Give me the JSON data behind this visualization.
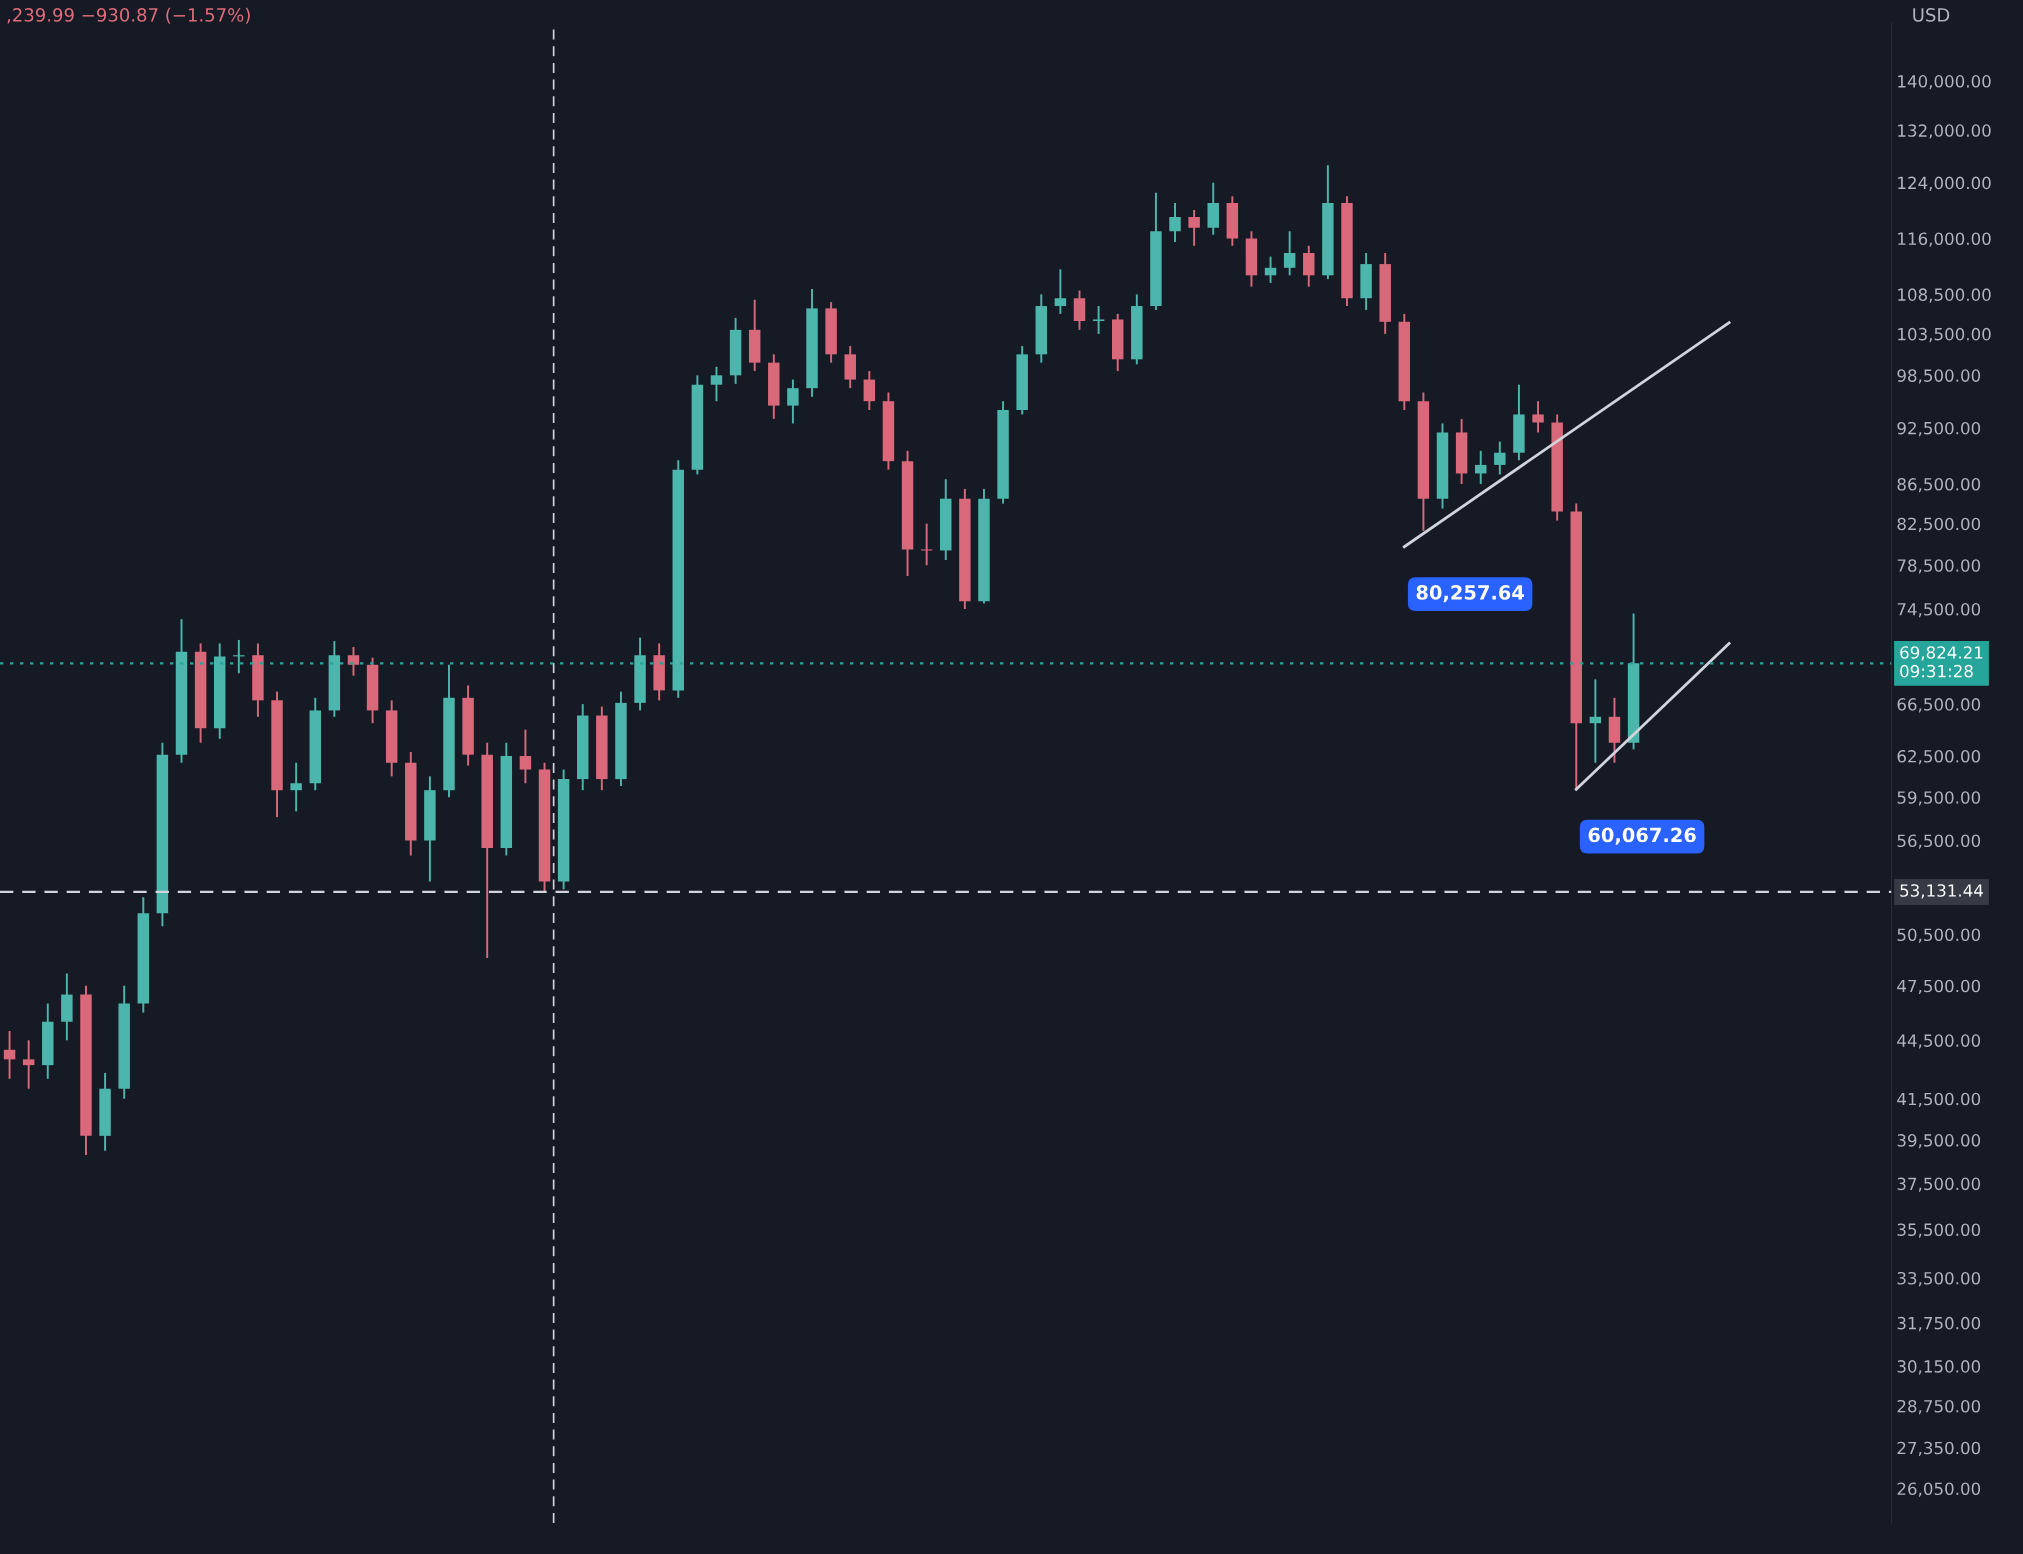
{
  "chart_data": {
    "type": "candlestick",
    "log": "y",
    "grid": false,
    "categories": [
      null,
      null,
      null,
      null,
      null,
      null,
      null,
      null,
      null,
      null,
      null,
      null,
      null,
      null,
      null,
      null,
      null,
      null,
      null,
      null,
      null,
      null,
      null,
      null,
      null,
      null,
      null,
      null,
      null,
      null,
      null,
      null,
      null,
      null,
      null,
      null,
      null,
      null,
      null,
      null,
      null,
      null,
      null,
      null,
      null,
      null,
      null,
      null,
      null,
      null,
      null,
      null,
      null,
      null,
      null,
      null,
      null,
      null,
      null,
      null,
      null,
      null,
      null,
      null,
      null,
      null,
      null,
      null,
      null,
      null,
      null,
      null,
      null,
      null,
      null,
      null,
      null,
      null,
      null,
      null,
      null,
      null,
      null,
      null,
      null,
      null,
      null,
      null,
      null,
      null,
      null,
      null,
      null,
      null,
      null,
      null,
      null,
      null,
      null
    ],
    "ohlc": [
      [
        44000,
        45000,
        42500,
        43500
      ],
      [
        43500,
        44500,
        42000,
        43200
      ],
      [
        43200,
        46500,
        42500,
        45500
      ],
      [
        45500,
        48200,
        44500,
        47000
      ],
      [
        47000,
        47500,
        38800,
        39700
      ],
      [
        39700,
        42800,
        39000,
        42000
      ],
      [
        42000,
        47500,
        41500,
        46500
      ],
      [
        46500,
        52800,
        46000,
        51800
      ],
      [
        51800,
        63500,
        51000,
        62600
      ],
      [
        62600,
        73600,
        62000,
        70800
      ],
      [
        70800,
        71500,
        63500,
        64600
      ],
      [
        64600,
        71500,
        63800,
        70400
      ],
      [
        70400,
        71800,
        69000,
        70500
      ],
      [
        70500,
        71500,
        65500,
        66800
      ],
      [
        66800,
        67500,
        58100,
        60000
      ],
      [
        60000,
        62000,
        58500,
        60500
      ],
      [
        60500,
        67000,
        60000,
        66000
      ],
      [
        66000,
        71700,
        65500,
        70500
      ],
      [
        70500,
        71200,
        68800,
        69700
      ],
      [
        69700,
        70300,
        65000,
        66000
      ],
      [
        66000,
        66800,
        61000,
        62000
      ],
      [
        62000,
        62800,
        55500,
        56500
      ],
      [
        56500,
        61000,
        53800,
        60000
      ],
      [
        60000,
        69700,
        59500,
        67000
      ],
      [
        67000,
        68000,
        61800,
        62600
      ],
      [
        62600,
        63500,
        49100,
        56000
      ],
      [
        56000,
        63500,
        55500,
        62500
      ],
      [
        62500,
        64500,
        60500,
        61500
      ],
      [
        61500,
        62000,
        53100,
        53800
      ],
      [
        53800,
        61500,
        53300,
        60800
      ],
      [
        60800,
        66500,
        60000,
        65600
      ],
      [
        65600,
        66300,
        60000,
        60800
      ],
      [
        60800,
        67500,
        60300,
        66600
      ],
      [
        66600,
        72000,
        66000,
        70500
      ],
      [
        70500,
        71500,
        66800,
        67600
      ],
      [
        67600,
        89000,
        67000,
        88000
      ],
      [
        88000,
        98500,
        87500,
        97400
      ],
      [
        97400,
        99500,
        95500,
        98500
      ],
      [
        98500,
        105500,
        97500,
        104000
      ],
      [
        104000,
        107800,
        99000,
        100000
      ],
      [
        100000,
        101000,
        93500,
        95000
      ],
      [
        95000,
        98000,
        93000,
        97000
      ],
      [
        97000,
        109200,
        96000,
        106700
      ],
      [
        106700,
        107500,
        100000,
        101000
      ],
      [
        101000,
        102000,
        97000,
        98000
      ],
      [
        98000,
        99000,
        94500,
        95500
      ],
      [
        95500,
        96500,
        88000,
        88900
      ],
      [
        88900,
        90000,
        77500,
        80000
      ],
      [
        80000,
        82500,
        78500,
        79900
      ],
      [
        79900,
        87000,
        79000,
        85000
      ],
      [
        85000,
        86000,
        74500,
        75200
      ],
      [
        75200,
        86000,
        75000,
        85000
      ],
      [
        85000,
        95500,
        84500,
        94500
      ],
      [
        94500,
        102000,
        94000,
        101000
      ],
      [
        101000,
        108500,
        100000,
        107000
      ],
      [
        107000,
        111800,
        106000,
        108000
      ],
      [
        108000,
        109000,
        104000,
        105100
      ],
      [
        105100,
        107000,
        103500,
        105300
      ],
      [
        105300,
        106000,
        99000,
        100400
      ],
      [
        100400,
        108500,
        99800,
        107000
      ],
      [
        107000,
        122500,
        106500,
        117000
      ],
      [
        117000,
        121000,
        115500,
        119000
      ],
      [
        119000,
        120000,
        115000,
        117500
      ],
      [
        117500,
        124000,
        116500,
        121000
      ],
      [
        121000,
        122000,
        115000,
        116000
      ],
      [
        116000,
        117000,
        109500,
        111000
      ],
      [
        111000,
        113500,
        110000,
        112000
      ],
      [
        112000,
        117000,
        111000,
        114000
      ],
      [
        114000,
        115000,
        109500,
        111000
      ],
      [
        111000,
        126600,
        110500,
        121000
      ],
      [
        121000,
        122000,
        107000,
        108000
      ],
      [
        108000,
        114000,
        106500,
        112500
      ],
      [
        112500,
        114000,
        103500,
        105000
      ],
      [
        105000,
        106000,
        94500,
        95500
      ],
      [
        95500,
        96500,
        81800,
        85000
      ],
      [
        85000,
        93000,
        84000,
        92000
      ],
      [
        92000,
        93500,
        86500,
        87600
      ],
      [
        87600,
        90000,
        86500,
        88500
      ],
      [
        88500,
        91000,
        87500,
        89800
      ],
      [
        89800,
        97400,
        89000,
        94000
      ],
      [
        94000,
        95500,
        92000,
        93100
      ],
      [
        93100,
        94000,
        82800,
        83700
      ],
      [
        83700,
        84500,
        60000,
        65000
      ],
      [
        65000,
        68500,
        62000,
        65500
      ],
      [
        65500,
        67000,
        62000,
        63500
      ],
      [
        63500,
        74100,
        63000,
        69824
      ],
      null,
      null,
      null,
      null,
      null,
      null,
      null,
      null,
      null,
      null,
      null,
      null,
      null
    ],
    "series": [
      {
        "type": "line",
        "name": "80,257.64",
        "color": "#d1d4dc",
        "values": [
          null,
          null,
          null,
          null,
          null,
          null,
          null,
          null,
          null,
          null,
          null,
          null,
          null,
          null,
          null,
          null,
          null,
          null,
          null,
          null,
          null,
          null,
          null,
          null,
          null,
          null,
          null,
          null,
          null,
          null,
          null,
          null,
          null,
          null,
          null,
          null,
          null,
          null,
          null,
          null,
          null,
          null,
          null,
          null,
          null,
          null,
          null,
          null,
          null,
          null,
          null,
          null,
          null,
          null,
          null,
          null,
          null,
          null,
          null,
          null,
          null,
          null,
          null,
          null,
          null,
          null,
          null,
          null,
          null,
          null,
          null,
          null,
          null,
          80257.64,
          null,
          null,
          null,
          null,
          null,
          null,
          null,
          null,
          null,
          null,
          null,
          null,
          null,
          null,
          null,
          null,
          104900,
          null,
          null,
          null,
          null,
          null,
          null,
          null,
          null
        ]
      },
      {
        "type": "line",
        "name": "60,067.26",
        "color": "#d1d4dc",
        "values": [
          null,
          null,
          null,
          null,
          null,
          null,
          null,
          null,
          null,
          null,
          null,
          null,
          null,
          null,
          null,
          null,
          null,
          null,
          null,
          null,
          null,
          null,
          null,
          null,
          null,
          null,
          null,
          null,
          null,
          null,
          null,
          null,
          null,
          null,
          null,
          null,
          null,
          null,
          null,
          null,
          null,
          null,
          null,
          null,
          null,
          null,
          null,
          null,
          null,
          null,
          null,
          null,
          null,
          null,
          null,
          null,
          null,
          null,
          null,
          null,
          null,
          null,
          null,
          null,
          null,
          null,
          null,
          null,
          null,
          null,
          null,
          null,
          null,
          null,
          null,
          null,
          null,
          null,
          null,
          null,
          null,
          null,
          60067.26,
          null,
          null,
          null,
          null,
          null,
          null,
          null,
          71500,
          null,
          null,
          null,
          null,
          null,
          null,
          null,
          null
        ]
      }
    ],
    "ylim": [
      25000,
      150000
    ],
    "yticks": [
      {
        "value": 140000,
        "label": "140,000.00"
      },
      {
        "value": 132000,
        "label": "132,000.00"
      },
      {
        "value": 124000,
        "label": "124,000.00"
      },
      {
        "value": 116000,
        "label": "116,000.00"
      },
      {
        "value": 108500,
        "label": "108,500.00"
      },
      {
        "value": 103500,
        "label": "103,500.00"
      },
      {
        "value": 98500,
        "label": "98,500.00"
      },
      {
        "value": 92500,
        "label": "92,500.00"
      },
      {
        "value": 86500,
        "label": "86,500.00"
      },
      {
        "value": 82500,
        "label": "82,500.00"
      },
      {
        "value": 78500,
        "label": "78,500.00"
      },
      {
        "value": 74500,
        "label": "74,500.00"
      },
      {
        "value": 66500,
        "label": "66,500.00"
      },
      {
        "value": 62500,
        "label": "62,500.00"
      },
      {
        "value": 59500,
        "label": "59,500.00"
      },
      {
        "value": 56500,
        "label": "56,500.00"
      },
      {
        "value": 50500,
        "label": "50,500.00"
      },
      {
        "value": 47500,
        "label": "47,500.00"
      },
      {
        "value": 44500,
        "label": "44,500.00"
      },
      {
        "value": 41500,
        "label": "41,500.00"
      },
      {
        "value": 39500,
        "label": "39,500.00"
      },
      {
        "value": 37500,
        "label": "37,500.00"
      },
      {
        "value": 35500,
        "label": "35,500.00"
      },
      {
        "value": 33500,
        "label": "33,500.00"
      },
      {
        "value": 31750,
        "label": "31,750.00"
      },
      {
        "value": 30150,
        "label": "30,150.00"
      },
      {
        "value": 28750,
        "label": "28,750.00"
      },
      {
        "value": 27350,
        "label": "27,350.00"
      },
      {
        "value": 26050,
        "label": "26,050.00"
      }
    ],
    "ref_lines": [
      {
        "axis": "y",
        "value": 53131.44,
        "label": "53,131.44",
        "color": "#d1d4dc",
        "line_style": "dashed"
      },
      {
        "axis": "y",
        "value": 69824.21,
        "label": "69,824.21\n09:31:28",
        "color": "#26a69a",
        "line_style": "dotted"
      }
    ],
    "annotations": [
      ",239.99 −930.87 (−1.57%)",
      "USD"
    ]
  }
}
